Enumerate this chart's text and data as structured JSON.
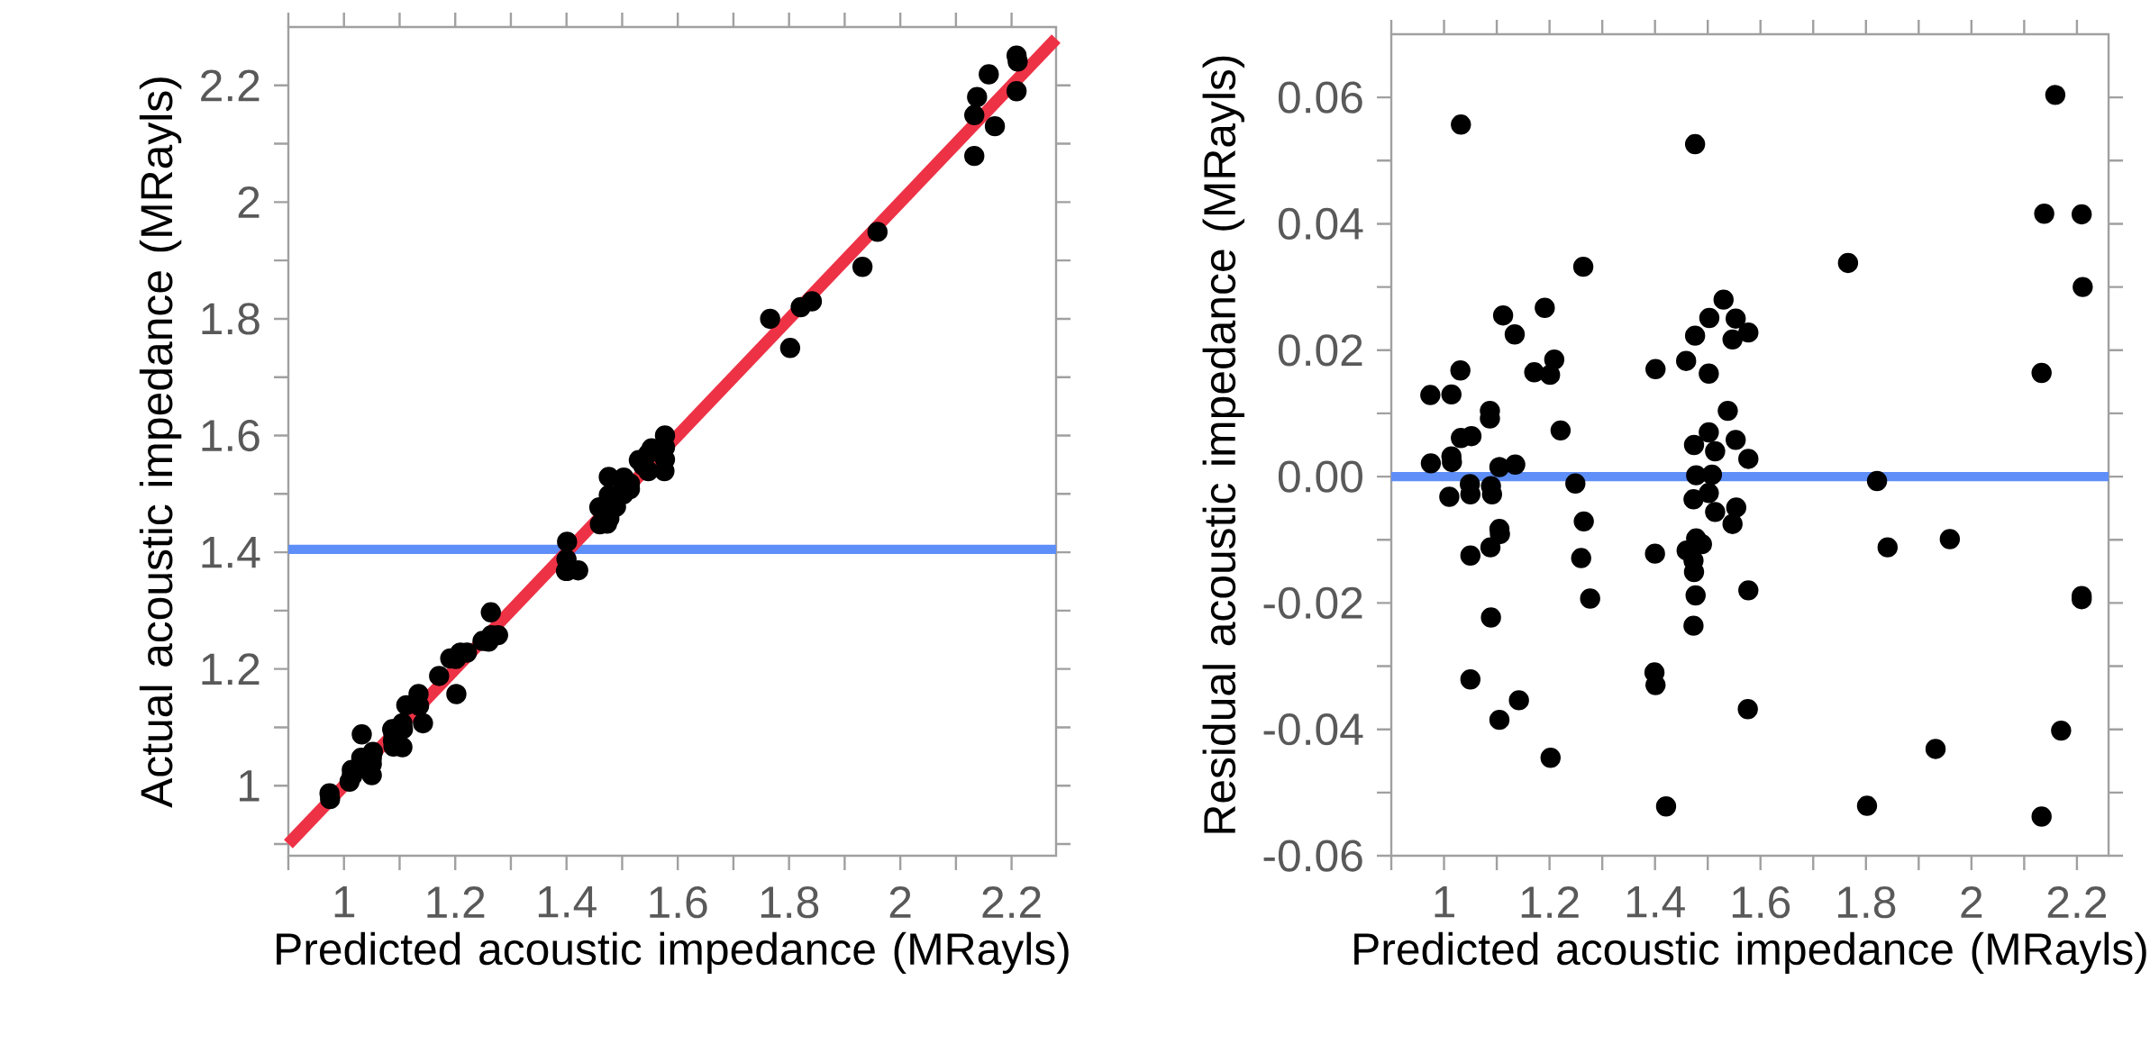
{
  "chart_data": [
    {
      "type": "scatter",
      "xlabel": "Predicted acoustic impedance (MRayls)",
      "ylabel": "Actual acoustic impedance (MRayls)",
      "xlim": [
        0.9,
        2.28
      ],
      "ylim": [
        0.88,
        2.3
      ],
      "xticks": [
        {
          "value": 0.9,
          "label": null
        },
        1,
        {
          "value": 1.1,
          "label": null
        },
        1.2,
        {
          "value": 1.3,
          "label": null
        },
        1.4,
        {
          "value": 1.5,
          "label": null
        },
        1.6,
        {
          "value": 1.7,
          "label": null
        },
        1.8,
        {
          "value": 1.9,
          "label": null
        },
        2,
        {
          "value": 2.1,
          "label": null
        },
        2.2
      ],
      "yticks": [
        {
          "value": 0.9,
          "label": null
        },
        1,
        {
          "value": 1.1,
          "label": null
        },
        1.2,
        {
          "value": 1.3,
          "label": null
        },
        1.4,
        {
          "value": 1.5,
          "label": null
        },
        1.6,
        {
          "value": 1.7,
          "label": null
        },
        1.8,
        {
          "value": 1.9,
          "label": null
        },
        2,
        {
          "value": 2.1,
          "label": null
        },
        2.2
      ],
      "ref_lines": [
        {
          "axis": "y",
          "value": 1.405,
          "color": "#5e8ef7"
        }
      ],
      "series": [
        {
          "color": "#000000",
          "marker": "circle",
          "x": [
            1.032,
            1.476,
            2.159,
            2.138,
            2.209,
            2.211,
            1.766,
            1.264,
            1.112,
            1.134,
            1.191,
            1.209,
            1.171,
            1.201,
            1.031,
            0.974,
            1.014,
            2.133,
            1.401,
            1.459,
            1.502,
            1.476,
            1.503,
            1.53,
            1.553,
            1.547,
            1.577,
            1.087,
            1.087,
            1.032,
            1.052,
            1.221,
            0.975,
            1.014,
            1.015,
            1.105,
            1.135,
            1.01,
            1.049,
            1.05,
            1.089,
            1.105,
            1.106,
            1.088,
            1.05,
            1.089,
            1.05,
            1.142,
            1.105,
            1.202,
            1.249,
            1.265,
            1.26,
            1.277,
            1.538,
            1.514,
            1.577,
            1.502,
            1.514,
            1.547,
            1.478,
            1.489,
            1.46,
            1.477,
            1.473,
            1.577,
            1.576,
            1.4,
            1.399,
            1.401,
            1.421,
            1.821,
            1.841,
            1.959,
            1.932,
            1.802,
            2.209,
            2.17,
            2.133
          ],
          "values": [
            1.088,
            1.529,
            2.219,
            2.18,
            2.251,
            2.241,
            1.8,
            1.297,
            1.138,
            1.157,
            1.218,
            1.228,
            1.188,
            1.217,
            1.048,
            0.987,
            1.027,
            2.149,
            1.418,
            1.477,
            1.518,
            1.498,
            1.528,
            1.558,
            1.578,
            1.569,
            1.6,
            1.097,
            1.096,
            1.038,
            1.058,
            1.228,
            0.977,
            1.017,
            1.017,
            1.107,
            1.137,
            1.007,
            1.048,
            1.047,
            1.087,
            1.097,
            1.097,
            1.077,
            1.037,
            1.067,
            1.018,
            1.107,
            1.066,
            1.157,
            1.248,
            1.258,
            1.247,
            1.258,
            1.548,
            1.518,
            1.58,
            1.499,
            1.508,
            1.539,
            1.468,
            1.478,
            1.448,
            1.458,
            1.449,
            1.559,
            1.539,
            1.388,
            1.368,
            1.368,
            1.369,
            1.82,
            1.83,
            1.949,
            1.889,
            1.75,
            2.19,
            2.13,
            2.079
          ]
        },
        {
          "type": "line",
          "marker": "none",
          "color": "#ee3246",
          "x": [
            0.9,
            2.28
          ],
          "values": [
            0.9,
            2.28
          ]
        }
      ]
    },
    {
      "type": "scatter",
      "xlabel": "Predicted acoustic impedance (MRayls)",
      "ylabel": "Residual acoustic impedance (MRayls)",
      "xlim": [
        0.9,
        2.26
      ],
      "ylim": [
        -0.06,
        0.07
      ],
      "marker": "circle",
      "xticks": [
        {
          "value": 0.9,
          "label": null
        },
        1,
        {
          "value": 1.1,
          "label": null
        },
        1.2,
        {
          "value": 1.3,
          "label": null
        },
        1.4,
        {
          "value": 1.5,
          "label": null
        },
        1.6,
        {
          "value": 1.7,
          "label": null
        },
        1.8,
        {
          "value": 1.9,
          "label": null
        },
        2,
        {
          "value": 2.1,
          "label": null
        },
        2.2
      ],
      "yticks": [
        {
          "value": -0.06,
          "label": "-0.06"
        },
        {
          "value": -0.05,
          "label": null
        },
        {
          "value": -0.04,
          "label": "-0.04"
        },
        {
          "value": -0.03,
          "label": null
        },
        {
          "value": -0.02,
          "label": "-0.02"
        },
        {
          "value": -0.01,
          "label": null
        },
        {
          "value": 0,
          "label": "0.00"
        },
        {
          "value": 0.01,
          "label": null
        },
        {
          "value": 0.02,
          "label": "0.02"
        },
        {
          "value": 0.03,
          "label": null
        },
        {
          "value": 0.04,
          "label": "0.04"
        },
        {
          "value": 0.05,
          "label": null
        },
        {
          "value": 0.06,
          "label": "0.06"
        }
      ],
      "ref_lines": [
        {
          "axis": "y",
          "value": 0,
          "color": "#5e8ef7"
        }
      ],
      "series": [
        {
          "color": "#000000",
          "x": [
            1.032,
            1.476,
            2.159,
            2.138,
            2.209,
            2.211,
            1.766,
            1.264,
            1.112,
            1.134,
            1.191,
            1.209,
            1.171,
            1.201,
            1.031,
            0.974,
            1.014,
            2.133,
            1.401,
            1.459,
            1.502,
            1.476,
            1.503,
            1.53,
            1.553,
            1.547,
            1.577,
            1.087,
            1.087,
            1.032,
            1.052,
            1.221,
            0.975,
            1.014,
            1.015,
            1.105,
            1.135,
            1.01,
            1.049,
            1.05,
            1.089,
            1.091,
            1.105,
            1.106,
            1.088,
            1.05,
            1.089,
            1.05,
            1.142,
            1.105,
            1.202,
            1.249,
            1.265,
            1.26,
            1.277,
            1.538,
            1.502,
            1.474,
            1.514,
            1.553,
            1.577,
            1.478,
            1.508,
            1.502,
            1.473,
            1.514,
            1.554,
            1.547,
            1.478,
            1.489,
            1.46,
            1.473,
            1.474,
            1.477,
            1.473,
            1.577,
            1.576,
            1.4,
            1.399,
            1.401,
            1.421,
            1.821,
            1.841,
            1.959,
            1.932,
            1.802,
            2.209,
            2.209,
            2.17,
            2.133
          ],
          "values": [
            0.0557,
            0.0526,
            0.0604,
            0.0416,
            0.0415,
            0.03,
            0.0338,
            0.0332,
            0.0255,
            0.0225,
            0.0267,
            0.0185,
            0.0165,
            0.0161,
            0.0168,
            0.0129,
            0.013,
            0.0164,
            0.017,
            0.0183,
            0.0163,
            0.0223,
            0.0251,
            0.028,
            0.025,
            0.0217,
            0.0228,
            0.0104,
            0.0092,
            0.0061,
            0.0064,
            0.0073,
            0.0021,
            0.0032,
            0.0023,
            0.0015,
            0.0019,
            -0.0032,
            -0.0012,
            -0.0028,
            -0.0015,
            -0.0028,
            -0.0083,
            -0.0091,
            -0.0112,
            -0.0125,
            -0.0223,
            -0.0321,
            -0.0354,
            -0.0385,
            -0.0445,
            -0.0011,
            -0.0071,
            -0.0129,
            -0.0193,
            0.0104,
            0.007,
            0.005,
            0.004,
            0.0058,
            0.0028,
            0.0002,
            0.0003,
            -0.0026,
            -0.0036,
            -0.0056,
            -0.0049,
            -0.0075,
            -0.0098,
            -0.0107,
            -0.0117,
            -0.0133,
            -0.0151,
            -0.0188,
            -0.0236,
            -0.018,
            -0.0368,
            -0.0122,
            -0.031,
            -0.033,
            -0.0522,
            -0.0007,
            -0.0112,
            -0.0099,
            -0.0431,
            -0.0521,
            -0.0189,
            -0.0194,
            -0.0402,
            -0.0538
          ]
        }
      ]
    }
  ]
}
